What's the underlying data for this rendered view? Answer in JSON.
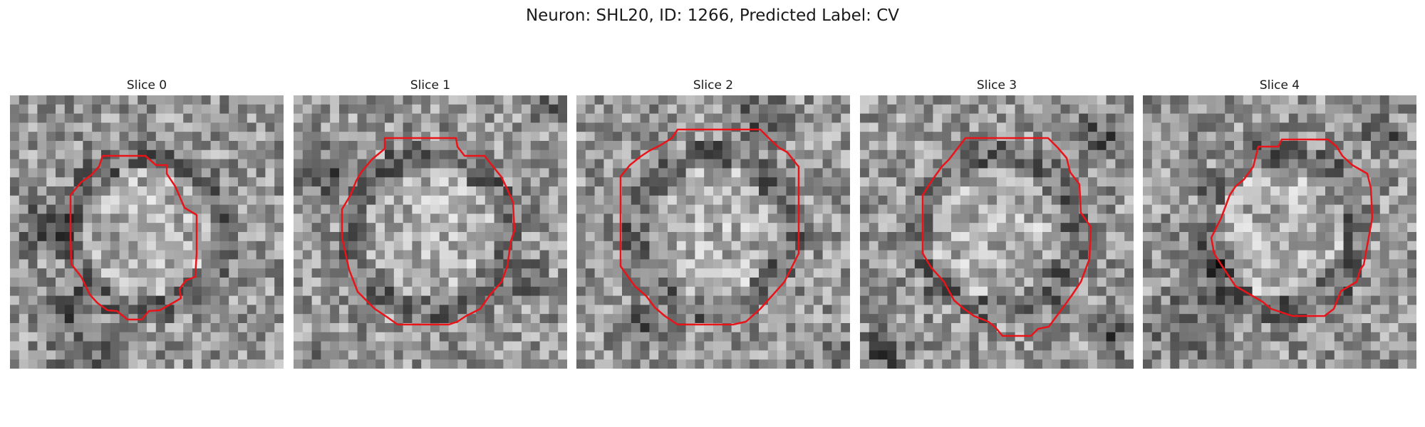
{
  "figure": {
    "title": "Neuron: SHL20, ID: 1266, Predicted Label: CV"
  },
  "colors": {
    "background": "#ffffff",
    "contour": "#e8141a",
    "text": "#1a1a1a"
  },
  "panels": [
    {
      "title": "Slice 0"
    },
    {
      "title": "Slice 1"
    },
    {
      "title": "Slice 2"
    },
    {
      "title": "Slice 3"
    },
    {
      "title": "Slice 4"
    }
  ]
}
